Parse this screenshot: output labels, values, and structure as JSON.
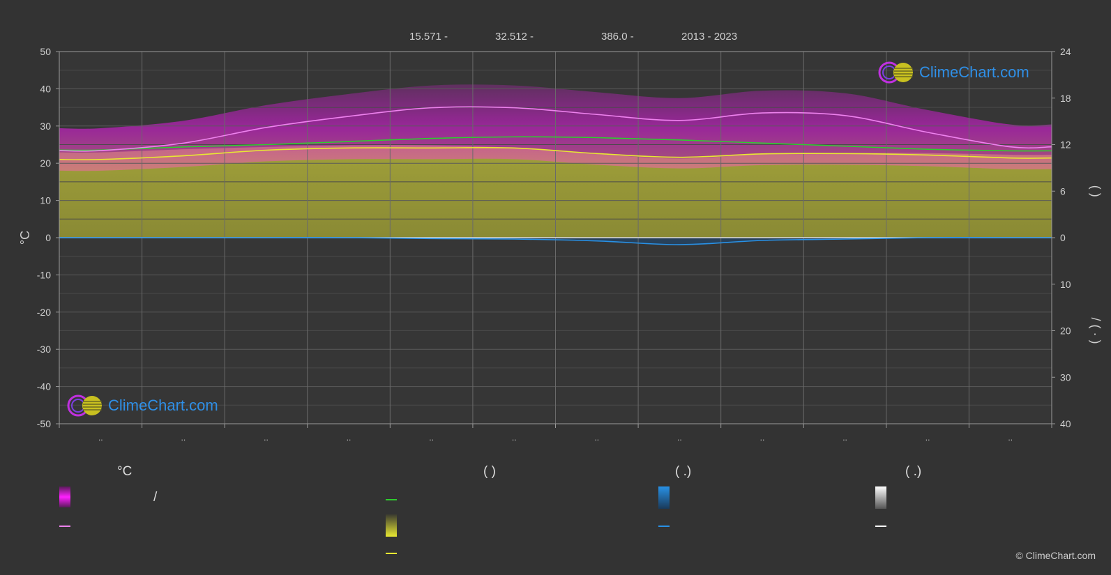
{
  "header": {
    "lat": "15.571 -",
    "lon": "32.512 -",
    "elev": "386.0 -",
    "years": "2013 - 2023"
  },
  "logo": {
    "text": "ClimeChart.com"
  },
  "copyright": "© ClimeChart.com",
  "axes": {
    "left_title": "°C",
    "right_top_title": "(      )",
    "right_bottom_title": "/     (  ·  )"
  },
  "legend": {
    "col1_head": "°C",
    "col2_head": "(          )",
    "col3_head": "(   .)",
    "col4_head": "(   .)",
    "slash": "/"
  },
  "colors": {
    "background": "#333333",
    "temp_range": "#d21ed2",
    "daylight": "#b4b43c",
    "precip": "#1e78c8",
    "max_mean": "#ee82ee",
    "min_mean": "#e8e832",
    "daylight_line": "#2ecc2e",
    "precip_line": "#2891e6",
    "snow": "#ffffff"
  },
  "chart_data": {
    "type": "area",
    "months": [
      "..",
      "..",
      "..",
      "..",
      "..",
      "..",
      "..",
      "..",
      "..",
      "..",
      "..",
      ".."
    ],
    "ylim_left": [
      -50,
      50
    ],
    "yticks_left": [
      50,
      40,
      30,
      20,
      10,
      0,
      -10,
      -20,
      -30,
      -40,
      -50
    ],
    "yticks_right_top": [
      24,
      18,
      12,
      6,
      0
    ],
    "yticks_right_bottom": [
      10,
      20,
      30,
      40
    ],
    "ylim_right_top_hours": [
      0,
      24
    ],
    "ylim_right_bottom_mm": [
      0,
      40
    ],
    "grid": true,
    "series": [
      {
        "key": "max_temp_mean",
        "values": [
          23.4,
          25.4,
          29.6,
          32.6,
          34.9,
          34.9,
          33.1,
          31.5,
          33.5,
          32.8,
          28.3,
          24.4
        ]
      },
      {
        "key": "min_temp_mean",
        "values": [
          21.0,
          22.0,
          23.5,
          24.1,
          24.1,
          24.1,
          22.6,
          21.6,
          22.5,
          22.6,
          22.2,
          21.4
        ]
      },
      {
        "key": "daylight_hours",
        "values": [
          11.3,
          11.7,
          12.0,
          12.4,
          12.8,
          13.0,
          12.9,
          12.6,
          12.2,
          11.8,
          11.4,
          11.2
        ]
      },
      {
        "key": "sunshine_hours",
        "values": [
          11.0,
          11.4,
          11.7,
          11.9,
          11.9,
          11.6,
          10.8,
          10.2,
          10.8,
          10.9,
          10.9,
          10.7
        ]
      },
      {
        "key": "precip_mm",
        "values": [
          0.0,
          0.0,
          0.0,
          0.0,
          0.2,
          0.3,
          0.7,
          1.5,
          0.6,
          0.3,
          0.0,
          0.0
        ]
      }
    ]
  }
}
